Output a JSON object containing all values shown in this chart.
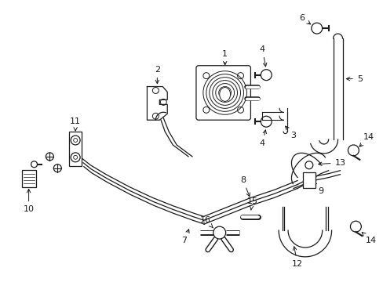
{
  "background_color": "#ffffff",
  "line_color": "#1a1a1a",
  "fig_w": 4.89,
  "fig_h": 3.6,
  "dpi": 100,
  "fontsize": 8,
  "lw": 0.9
}
